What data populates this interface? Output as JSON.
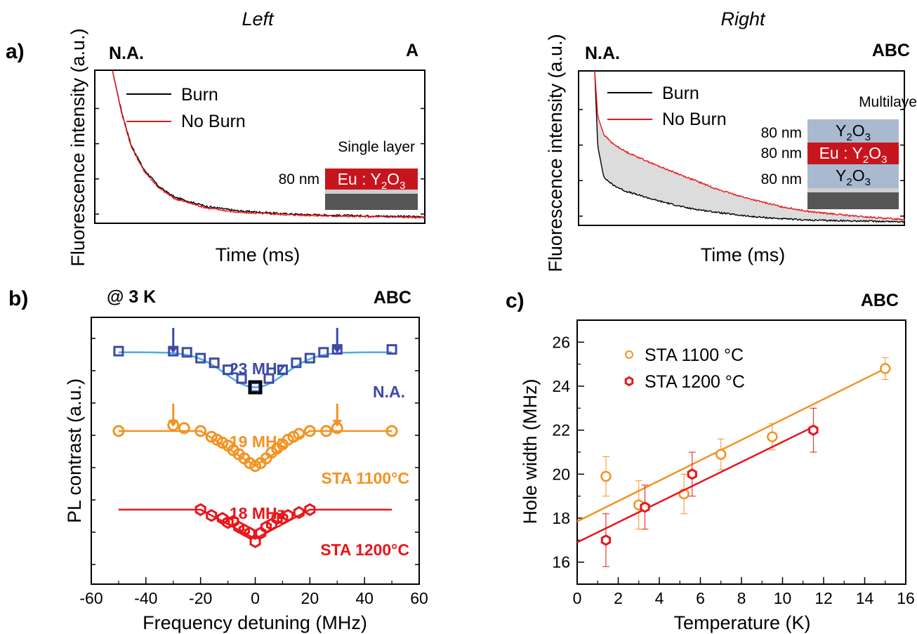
{
  "panel_labels": {
    "a": "a)",
    "b": "b)",
    "c": "c)"
  },
  "colors": {
    "black": "#000000",
    "red": "#e8161b",
    "blue": "#3c4aa8",
    "lightblue": "#4aaee6",
    "orange": "#f39323",
    "darkred": "#d82128",
    "gray": "#555555",
    "layer_blue": "#a9bad0",
    "layer_red": "#c7151e",
    "fill": "#dddddd"
  },
  "chart_data": [
    {
      "type": "line",
      "panel": "a-left",
      "top_title": "Left",
      "corner_left": "N.A.",
      "corner_right": "A",
      "xlabel": "Time (ms)",
      "ylabel": "Fluorescence intensity (a.u.)",
      "series": [
        {
          "name": "Burn",
          "color": "#000000",
          "decay": [
            [
              0,
              1.0
            ],
            [
              0.03,
              0.72
            ],
            [
              0.06,
              0.5
            ],
            [
              0.1,
              0.34
            ],
            [
              0.15,
              0.22
            ],
            [
              0.2,
              0.15
            ],
            [
              0.3,
              0.09
            ],
            [
              0.4,
              0.06
            ],
            [
              0.55,
              0.04
            ],
            [
              0.7,
              0.03
            ],
            [
              0.85,
              0.025
            ],
            [
              1.0,
              0.02
            ]
          ]
        },
        {
          "name": "No Burn",
          "color": "#e8161b",
          "decay": [
            [
              0,
              1.0
            ],
            [
              0.03,
              0.71
            ],
            [
              0.06,
              0.49
            ],
            [
              0.1,
              0.33
            ],
            [
              0.15,
              0.21
            ],
            [
              0.2,
              0.14
            ],
            [
              0.3,
              0.08
            ],
            [
              0.4,
              0.05
            ],
            [
              0.55,
              0.035
            ],
            [
              0.7,
              0.025
            ],
            [
              0.85,
              0.02
            ],
            [
              1.0,
              0.015
            ]
          ]
        }
      ],
      "inset": {
        "title": "Single layer",
        "thickness": "80 nm",
        "layer": "Eu : Y",
        "sub": "2",
        "tail": "O",
        "sub2": "3"
      }
    },
    {
      "type": "line",
      "panel": "a-right",
      "top_title": "Right",
      "corner_left": "N.A.",
      "corner_right": "ABC",
      "xlabel": "Time (ms)",
      "ylabel": "Fluorescence intensity (a.u.)",
      "series": [
        {
          "name": "Burn",
          "color": "#000000",
          "decay": [
            [
              0,
              1.0
            ],
            [
              0.01,
              0.5
            ],
            [
              0.03,
              0.3
            ],
            [
              0.06,
              0.25
            ],
            [
              0.1,
              0.21
            ],
            [
              0.2,
              0.15
            ],
            [
              0.3,
              0.1
            ],
            [
              0.4,
              0.07
            ],
            [
              0.5,
              0.045
            ],
            [
              0.6,
              0.03
            ],
            [
              0.7,
              0.02
            ],
            [
              0.85,
              0.015
            ],
            [
              1.0,
              0.01
            ]
          ]
        },
        {
          "name": "No Burn",
          "color": "#e8161b",
          "decay": [
            [
              0,
              1.0
            ],
            [
              0.01,
              0.7
            ],
            [
              0.03,
              0.58
            ],
            [
              0.06,
              0.52
            ],
            [
              0.1,
              0.47
            ],
            [
              0.2,
              0.38
            ],
            [
              0.3,
              0.3
            ],
            [
              0.4,
              0.22
            ],
            [
              0.5,
              0.16
            ],
            [
              0.6,
              0.11
            ],
            [
              0.7,
              0.075
            ],
            [
              0.85,
              0.045
            ],
            [
              1.0,
              0.025
            ]
          ]
        }
      ],
      "inset": {
        "title": "Multilayer",
        "rows": [
          {
            "thickness": "80 nm",
            "label": "Y",
            "sub": "2",
            "tail": "O",
            "sub2": "3"
          },
          {
            "thickness": "80 nm",
            "label": "Eu : Y",
            "sub": "2",
            "tail": "O",
            "sub2": "3"
          },
          {
            "thickness": "80 nm",
            "label": "Y",
            "sub": "2",
            "tail": "O",
            "sub2": "3"
          }
        ]
      }
    },
    {
      "type": "scatter",
      "panel": "b",
      "corner_left": "@ 3 K",
      "corner_right": "ABC",
      "xlabel": "Frequency detuning (MHz)",
      "ylabel": "PL contrast (a.u.)",
      "xlim": [
        -60,
        60
      ],
      "xticks": [
        "-60",
        "-40",
        "-20",
        "0",
        "20",
        "40",
        "60"
      ],
      "series": [
        {
          "name": "N.A.",
          "width": "23 MHz",
          "color": "#3c4aa8",
          "fit_color": "#4aaee6",
          "marker": "square",
          "x": [
            -50,
            -30,
            -25,
            -20,
            -15,
            -10,
            -5,
            0,
            5,
            10,
            15,
            20,
            25,
            30,
            50
          ],
          "y": [
            0.42,
            0.42,
            0.4,
            0.3,
            0.22,
            0.1,
            -0.05,
            -0.2,
            -0.05,
            0.1,
            0.22,
            0.3,
            0.4,
            0.45,
            0.45
          ],
          "baseline": 0.4,
          "depth": 0.6,
          "sigma": 11
        },
        {
          "name": "STA 1100°C",
          "width": "19 MHz",
          "color": "#f39323",
          "fit_color": "#f39323",
          "marker": "circle",
          "x": [
            -50,
            -30,
            -26,
            -20,
            -16,
            -14,
            -12,
            -10,
            -8,
            -6,
            -4,
            -2,
            0,
            2,
            4,
            6,
            8,
            10,
            12,
            14,
            16,
            20,
            26,
            30,
            50
          ],
          "y": [
            -0.95,
            -0.85,
            -0.9,
            -0.95,
            -1.05,
            -1.1,
            -1.15,
            -1.2,
            -1.28,
            -1.35,
            -1.42,
            -1.5,
            -1.55,
            -1.5,
            -1.42,
            -1.32,
            -1.25,
            -1.18,
            -1.1,
            -1.05,
            -1.0,
            -0.95,
            -0.95,
            -0.9,
            -0.95
          ],
          "baseline": -0.95,
          "depth": 0.6,
          "tri": 20
        },
        {
          "name": "STA 1200°C",
          "width": "18 MHz",
          "color": "#e8161b",
          "fit_color": "#e8161b",
          "marker": "hexagon",
          "x": [
            -20,
            -16,
            -12,
            -10,
            -8,
            -6,
            -4,
            -2,
            0,
            2,
            4,
            6,
            8,
            10,
            12,
            16,
            20
          ],
          "y": [
            -2.3,
            -2.4,
            -2.45,
            -2.52,
            -2.5,
            -2.6,
            -2.65,
            -2.7,
            -2.85,
            -2.7,
            -2.6,
            -2.55,
            -2.45,
            -2.45,
            -2.4,
            -2.35,
            -2.3
          ],
          "baseline": -2.3,
          "depth": 0.5,
          "tri": 20
        }
      ],
      "arrows": [
        {
          "x": -30,
          "series": 0
        },
        {
          "x": 30,
          "series": 0
        },
        {
          "x": -30,
          "series": 1
        },
        {
          "x": 30,
          "series": 1
        }
      ]
    },
    {
      "type": "scatter",
      "panel": "c",
      "corner_right": "ABC",
      "xlabel": "Temperature (K)",
      "ylabel": "Hole width (MHz)",
      "xlim": [
        0,
        16
      ],
      "ylim": [
        15,
        27
      ],
      "xticks": [
        "0",
        "2",
        "4",
        "6",
        "8",
        "10",
        "12",
        "14",
        "16"
      ],
      "yticks": [
        "16",
        "18",
        "20",
        "22",
        "24",
        "26"
      ],
      "series": [
        {
          "name": "STA 1100 °C",
          "color": "#f39323",
          "marker": "circle",
          "x": [
            1.4,
            3.0,
            5.2,
            7.0,
            9.5,
            15.0
          ],
          "y": [
            19.9,
            18.6,
            19.1,
            20.9,
            21.7,
            24.8
          ],
          "err": [
            0.9,
            1.1,
            0.9,
            0.7,
            0.6,
            0.5
          ],
          "fit": [
            [
              0,
              17.85
            ],
            [
              15,
              24.8
            ]
          ]
        },
        {
          "name": "STA 1200 °C",
          "color": "#e8161b",
          "marker": "hexagon",
          "x": [
            1.4,
            3.3,
            5.6,
            11.5
          ],
          "y": [
            17.0,
            18.5,
            20.0,
            22.0
          ],
          "err": [
            1.2,
            1.0,
            1.0,
            1.0
          ],
          "fit": [
            [
              0,
              16.9
            ],
            [
              11.5,
              22.15
            ]
          ]
        }
      ]
    }
  ]
}
